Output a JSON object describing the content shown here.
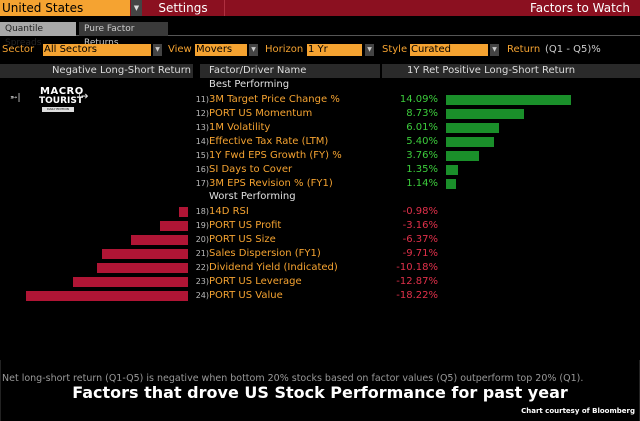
{
  "topbar": {
    "country": "United States",
    "settings_label": "Settings",
    "title": "Factors to Watch"
  },
  "tabs": [
    {
      "label": "Quantile Spreads",
      "active": true
    },
    {
      "label": "Pure Factor Returns",
      "active": false
    }
  ],
  "filters": {
    "sector_label": "Sector",
    "sector_value": "All Sectors",
    "view_label": "View",
    "view_value": "Movers",
    "horizon_label": "Horizon",
    "horizon_value": "1 Yr",
    "style_label": "Style",
    "style_value": "Curated",
    "return_label": "Return",
    "return_unit": "(Q1 - Q5)%"
  },
  "columns": {
    "negative": "Negative Long-Short Return",
    "factor": "Factor/Driver Name",
    "positive": "1Y Ret Positive Long-Short Return"
  },
  "logo": {
    "line1": "MACRO",
    "line2": "TOURIST",
    "line3": "DAILY EDITION"
  },
  "footer": {
    "note": "Net long-short return (Q1-Q5) is negative when bottom 20% stocks based on factor values (Q5) outperform top 20% (Q1).",
    "caption": "Factors that drove US Stock Performance for past year",
    "credit": "Chart courtesy of Bloomberg"
  },
  "colors": {
    "accent_orange": "#f5a331",
    "header_red": "#8b1020",
    "positive_bar": "#1a8f2a",
    "negative_bar": "#b01535",
    "positive_text": "#3ccc3c",
    "negative_text": "#e0304a"
  },
  "chart_data": {
    "type": "bar",
    "title": "Factors to Watch",
    "xlabel": "1Y Ret Long-Short Return (Q1 - Q5)%",
    "ylabel": "Factor/Driver Name",
    "orientation": "horizontal",
    "groups": [
      {
        "name": "Best Performing",
        "items": [
          {
            "index": "11)",
            "name": "3M Target Price Change %",
            "value": 14.09,
            "label": "14.09%"
          },
          {
            "index": "12)",
            "name": "PORT US Momentum",
            "value": 8.73,
            "label": "8.73%"
          },
          {
            "index": "13)",
            "name": "1M Volatility",
            "value": 6.01,
            "label": "6.01%"
          },
          {
            "index": "14)",
            "name": "Effective Tax Rate (LTM)",
            "value": 5.4,
            "label": "5.40%"
          },
          {
            "index": "15)",
            "name": "1Y Fwd EPS Growth (FY) %",
            "value": 3.76,
            "label": "3.76%"
          },
          {
            "index": "16)",
            "name": "SI Days to Cover",
            "value": 1.35,
            "label": "1.35%"
          },
          {
            "index": "17)",
            "name": "3M EPS Revision % (FY1)",
            "value": 1.14,
            "label": "1.14%"
          }
        ]
      },
      {
        "name": "Worst Performing",
        "items": [
          {
            "index": "18)",
            "name": "14D RSI",
            "value": -0.98,
            "label": "-0.98%"
          },
          {
            "index": "19)",
            "name": "PORT US Profit",
            "value": -3.16,
            "label": "-3.16%"
          },
          {
            "index": "20)",
            "name": "PORT US Size",
            "value": -6.37,
            "label": "-6.37%"
          },
          {
            "index": "21)",
            "name": "Sales Dispersion (FY1)",
            "value": -9.71,
            "label": "-9.71%"
          },
          {
            "index": "22)",
            "name": "Dividend Yield (Indicated)",
            "value": -10.18,
            "label": "-10.18%"
          },
          {
            "index": "23)",
            "name": "PORT US Leverage",
            "value": -12.87,
            "label": "-12.87%"
          },
          {
            "index": "24)",
            "name": "PORT US Value",
            "value": -18.22,
            "label": "-18.22%"
          }
        ]
      }
    ],
    "grid": false,
    "legend": "none"
  }
}
